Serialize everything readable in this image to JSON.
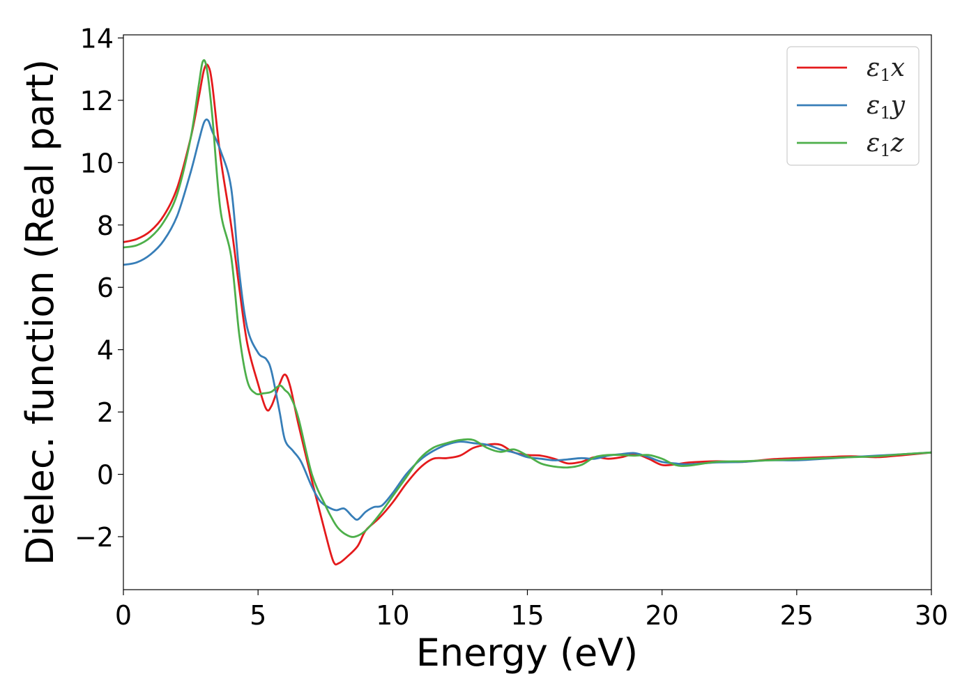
{
  "chart_data": {
    "type": "line",
    "xlabel": "Energy (eV)",
    "ylabel": "Dielec. function (Real part)",
    "xlim": [
      0,
      30
    ],
    "ylim": [
      -3.7,
      14.1
    ],
    "xticks": [
      0,
      5,
      10,
      15,
      20,
      25,
      30
    ],
    "xtick_labels": [
      "0",
      "5",
      "10",
      "15",
      "20",
      "25",
      "30"
    ],
    "yticks": [
      -2,
      0,
      2,
      4,
      6,
      8,
      10,
      12,
      14
    ],
    "ytick_labels": [
      "−2",
      "0",
      "2",
      "4",
      "6",
      "8",
      "10",
      "12",
      "14"
    ],
    "grid": false,
    "legend_position": "top-right",
    "series": [
      {
        "name": "ε₁x",
        "symbol": "ε",
        "sub": "1",
        "axis": "x",
        "color": "#e41a1c",
        "x": [
          0,
          0.5,
          1,
          1.5,
          2,
          2.5,
          2.8,
          3.0,
          3.15,
          3.3,
          3.6,
          4.0,
          4.3,
          4.6,
          5.0,
          5.3,
          5.5,
          5.8,
          6.0,
          6.2,
          6.5,
          7.0,
          7.5,
          7.8,
          8.0,
          8.3,
          8.7,
          9.0,
          9.5,
          10,
          10.5,
          11,
          11.5,
          12,
          12.5,
          13,
          13.5,
          14,
          14.5,
          15,
          15.5,
          16,
          16.5,
          17,
          17.5,
          18,
          18.5,
          19,
          19.5,
          20,
          20.5,
          21,
          22,
          23,
          24,
          25,
          26,
          27,
          28,
          29,
          30
        ],
        "y": [
          7.45,
          7.55,
          7.8,
          8.3,
          9.2,
          10.8,
          12.1,
          13.0,
          13.1,
          12.5,
          10.2,
          8.0,
          6.0,
          4.2,
          2.9,
          2.1,
          2.2,
          2.9,
          3.2,
          2.8,
          1.6,
          -0.2,
          -1.9,
          -2.8,
          -2.85,
          -2.65,
          -2.3,
          -1.8,
          -1.4,
          -0.9,
          -0.3,
          0.2,
          0.5,
          0.52,
          0.6,
          0.85,
          0.95,
          0.95,
          0.7,
          0.62,
          0.6,
          0.5,
          0.35,
          0.4,
          0.55,
          0.5,
          0.55,
          0.65,
          0.5,
          0.3,
          0.32,
          0.38,
          0.42,
          0.4,
          0.48,
          0.52,
          0.55,
          0.58,
          0.55,
          0.62,
          0.7
        ]
      },
      {
        "name": "ε₁y",
        "symbol": "ε",
        "sub": "1",
        "axis": "y",
        "color": "#377eb8",
        "x": [
          0,
          0.5,
          1,
          1.5,
          2,
          2.5,
          2.8,
          3.0,
          3.15,
          3.3,
          3.6,
          4.0,
          4.3,
          4.6,
          5.0,
          5.3,
          5.5,
          5.8,
          6.0,
          6.3,
          6.6,
          7.0,
          7.3,
          7.6,
          7.9,
          8.2,
          8.5,
          8.7,
          9.0,
          9.3,
          9.6,
          10,
          10.5,
          11,
          11.5,
          12,
          12.5,
          13,
          13.5,
          14,
          14.5,
          15,
          15.5,
          16,
          16.5,
          17,
          17.5,
          18,
          18.5,
          19,
          19.5,
          20,
          20.5,
          21,
          22,
          23,
          24,
          25,
          26,
          27,
          28,
          29,
          30
        ],
        "y": [
          6.72,
          6.8,
          7.05,
          7.5,
          8.3,
          9.7,
          10.7,
          11.3,
          11.35,
          11.0,
          10.4,
          9.2,
          6.5,
          4.7,
          3.9,
          3.7,
          3.3,
          2.0,
          1.1,
          0.75,
          0.4,
          -0.4,
          -0.85,
          -1.05,
          -1.15,
          -1.1,
          -1.35,
          -1.45,
          -1.2,
          -1.05,
          -1.0,
          -0.6,
          0.0,
          0.45,
          0.75,
          0.95,
          1.05,
          1.0,
          0.95,
          0.8,
          0.7,
          0.55,
          0.5,
          0.45,
          0.48,
          0.52,
          0.5,
          0.6,
          0.65,
          0.68,
          0.55,
          0.4,
          0.35,
          0.32,
          0.38,
          0.4,
          0.45,
          0.45,
          0.5,
          0.55,
          0.6,
          0.65,
          0.7
        ]
      },
      {
        "name": "ε₁z",
        "symbol": "ε",
        "sub": "1",
        "axis": "z",
        "color": "#4daf4a",
        "x": [
          0,
          0.5,
          1,
          1.5,
          2,
          2.5,
          2.8,
          2.95,
          3.1,
          3.3,
          3.6,
          4.0,
          4.3,
          4.6,
          4.9,
          5.2,
          5.5,
          5.8,
          6.0,
          6.2,
          6.5,
          7.0,
          7.5,
          7.8,
          8.0,
          8.3,
          8.6,
          9.0,
          9.5,
          10,
          10.5,
          11,
          11.5,
          12,
          12.5,
          13,
          13.5,
          14,
          14.5,
          15,
          15.5,
          16,
          16.5,
          17,
          17.5,
          18,
          18.5,
          19,
          19.5,
          20,
          20.5,
          21,
          22,
          23,
          24,
          25,
          26,
          27,
          28,
          29,
          30
        ],
        "y": [
          7.28,
          7.35,
          7.6,
          8.1,
          9.0,
          10.8,
          12.5,
          13.25,
          13.0,
          11.5,
          8.5,
          7.0,
          4.5,
          3.0,
          2.6,
          2.6,
          2.65,
          2.85,
          2.7,
          2.5,
          1.8,
          0.0,
          -1.0,
          -1.5,
          -1.75,
          -1.95,
          -2.0,
          -1.8,
          -1.3,
          -0.7,
          -0.1,
          0.5,
          0.85,
          1.0,
          1.1,
          1.1,
          0.85,
          0.72,
          0.8,
          0.6,
          0.35,
          0.25,
          0.22,
          0.3,
          0.55,
          0.62,
          0.62,
          0.6,
          0.62,
          0.5,
          0.3,
          0.28,
          0.4,
          0.42,
          0.45,
          0.48,
          0.52,
          0.55,
          0.58,
          0.65,
          0.7
        ]
      }
    ]
  }
}
